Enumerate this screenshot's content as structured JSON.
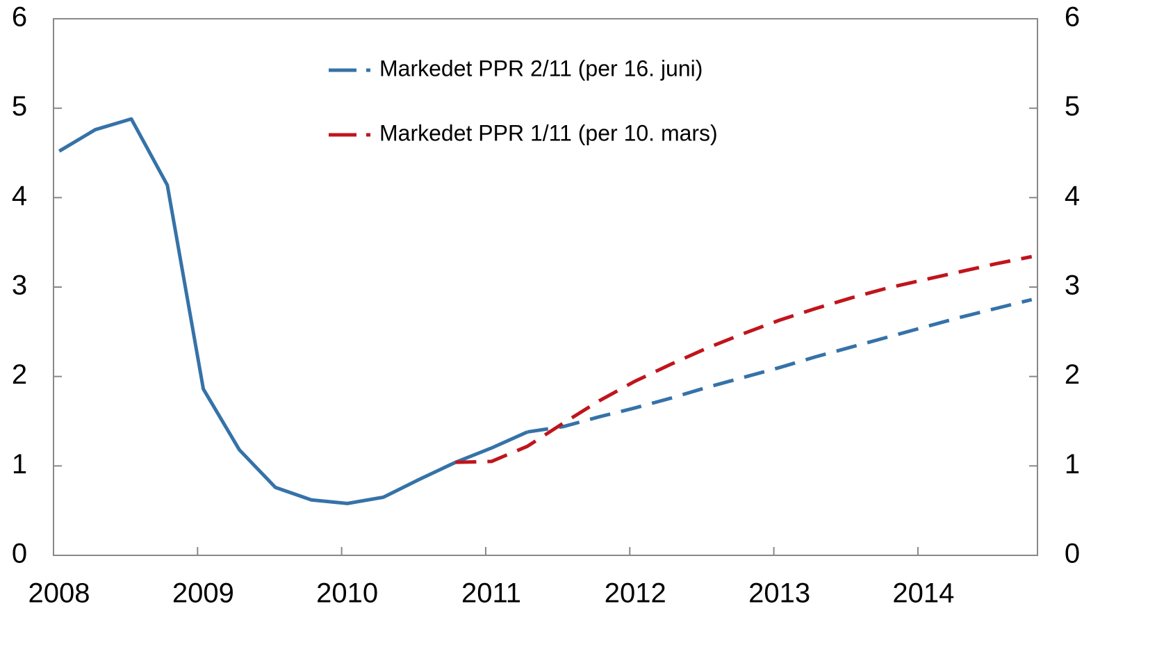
{
  "chart_data": {
    "type": "line",
    "xlim": [
      2008,
      2014.83
    ],
    "xticks": [
      2008,
      2009,
      2010,
      2011,
      2012,
      2013,
      2014
    ],
    "ylim": [
      0,
      6
    ],
    "yticks": [
      0,
      1,
      2,
      3,
      4,
      5,
      6
    ],
    "y2lim": [
      0,
      6
    ],
    "y2ticks": [
      0,
      1,
      2,
      3,
      4,
      5,
      6
    ],
    "legend": "top-left",
    "series": [
      {
        "name": "Markedet PPR 2/11 (per 16. juni)",
        "color": "#3572a8",
        "dashed_from_x": 2011.29,
        "x": [
          2008.04,
          2008.29,
          2008.54,
          2008.79,
          2009.04,
          2009.29,
          2009.54,
          2009.79,
          2010.04,
          2010.29,
          2010.54,
          2010.79,
          2011.04,
          2011.29,
          2011.54,
          2011.79,
          2012.04,
          2012.29,
          2012.54,
          2012.79,
          2013.04,
          2013.29,
          2013.54,
          2013.79,
          2014.04,
          2014.29,
          2014.54,
          2014.79
        ],
        "values": [
          4.52,
          4.76,
          4.88,
          4.14,
          1.86,
          1.18,
          0.76,
          0.62,
          0.58,
          0.65,
          0.85,
          1.04,
          1.2,
          1.38,
          1.44,
          1.55,
          1.65,
          1.76,
          1.88,
          1.99,
          2.1,
          2.22,
          2.33,
          2.44,
          2.55,
          2.66,
          2.76,
          2.86
        ]
      },
      {
        "name": "Markedet PPR 1/11 (per 10. mars)",
        "color": "#c0141c",
        "dashed_from_x": 2010.79,
        "x": [
          2010.79,
          2011.04,
          2011.29,
          2011.54,
          2011.79,
          2012.04,
          2012.29,
          2012.54,
          2012.79,
          2013.04,
          2013.29,
          2013.54,
          2013.79,
          2014.04,
          2014.29,
          2014.54,
          2014.79
        ],
        "values": [
          1.04,
          1.05,
          1.22,
          1.48,
          1.73,
          1.95,
          2.14,
          2.32,
          2.48,
          2.63,
          2.76,
          2.88,
          2.99,
          3.08,
          3.17,
          3.26,
          3.34
        ]
      }
    ]
  }
}
